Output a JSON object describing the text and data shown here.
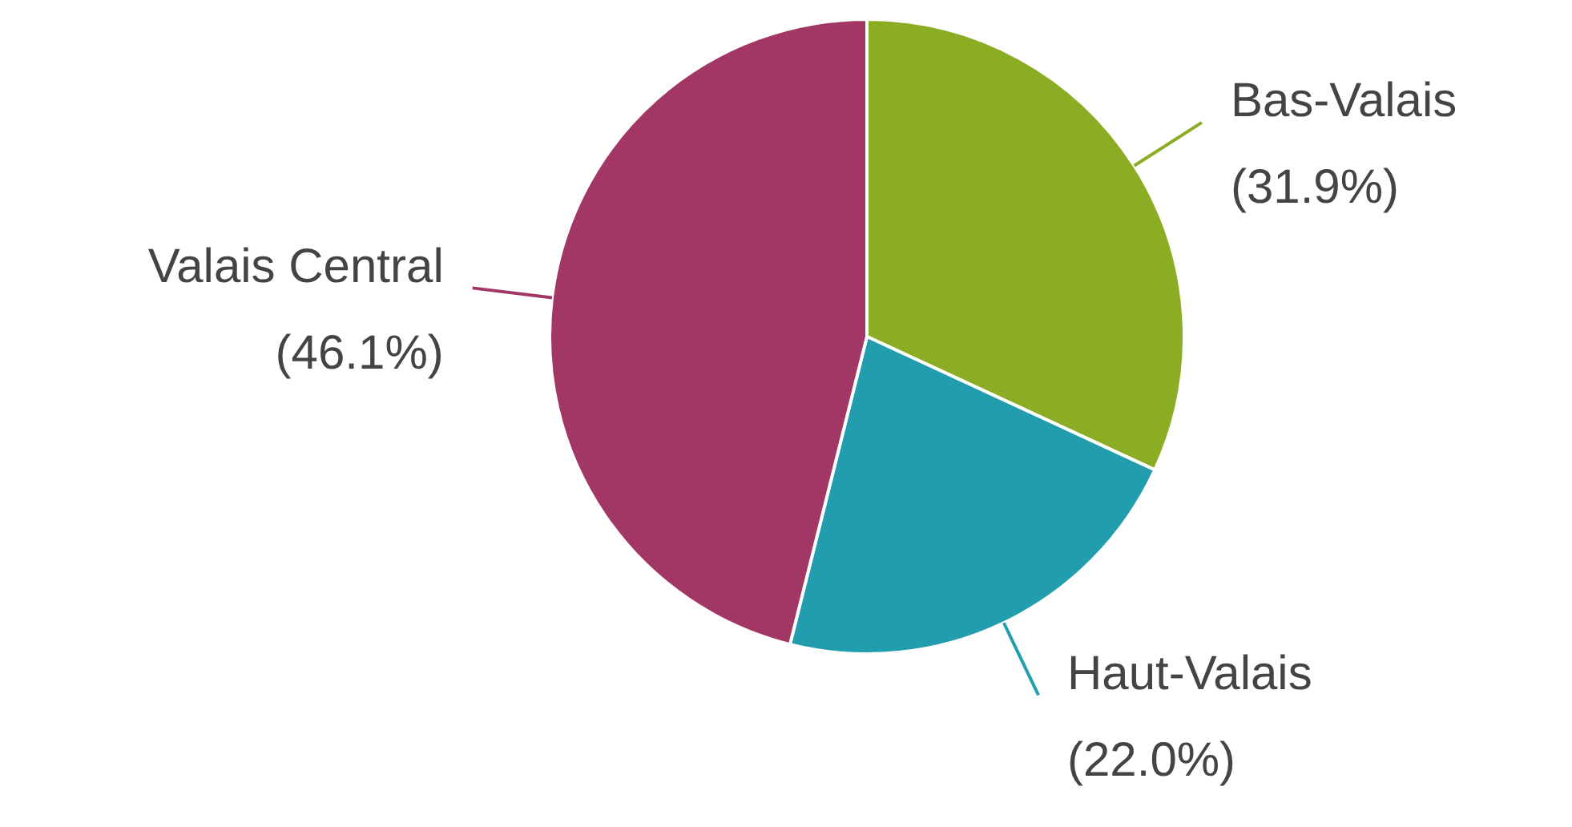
{
  "chart_data": {
    "type": "pie",
    "categories": [
      "Bas-Valais",
      "Haut-Valais",
      "Valais Central"
    ],
    "values": [
      31.9,
      22.0,
      46.1
    ],
    "colors": [
      "#8aad23",
      "#229dae",
      "#a23765"
    ],
    "value_labels": [
      "(31.9%)",
      "(22.0%)",
      "(46.1%)"
    ]
  }
}
